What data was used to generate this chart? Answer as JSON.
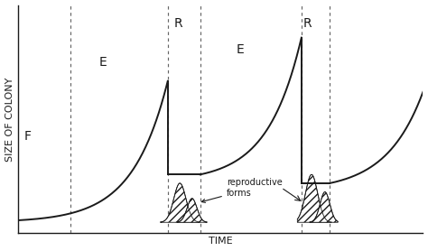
{
  "title": "",
  "xlabel": "TIME",
  "ylabel": "SIZE OF COLONY",
  "background_color": "#ffffff",
  "line_color": "#1a1a1a",
  "dashed_color": "#666666",
  "label_F": "F",
  "label_E1": "E",
  "label_E2": "E",
  "label_R1": "R",
  "label_R2": "R",
  "annot_text": "reproductive\nforms",
  "xlim": [
    0,
    10
  ],
  "ylim": [
    -0.5,
    10
  ],
  "dashed_lines_x": [
    1.3,
    3.7,
    4.5,
    7.0,
    7.7
  ],
  "label_font_size": 10,
  "axis_label_font_size": 8
}
